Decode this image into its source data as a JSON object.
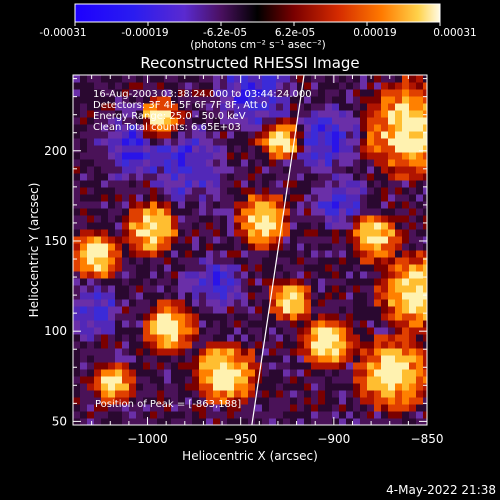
{
  "colorbar": {
    "tick_labels": [
      "-0.00031",
      "-0.00019",
      "-6.2e-05",
      "6.2e-05",
      "0.00019",
      "0.00031"
    ],
    "units_text": "(photons cm⁻² s⁻¹ asec⁻²)",
    "range": [
      -0.00031,
      0.00031
    ],
    "colormap": [
      "#1d00ff",
      "#3c2bd6",
      "#6a2fc0",
      "#5a0a3a",
      "#000000",
      "#7a0000",
      "#d42a00",
      "#ff7a00",
      "#ffd24a",
      "#fffbe6"
    ]
  },
  "header_info": {
    "time_range": "16-Aug-2003 03:38:24.000 to 03:44:24.000",
    "detectors": "Detectors: 3F 4F 5F 6F 7F 8F, Att 0",
    "energy": "Energy Range: 25.0 - 50.0 keV",
    "clean": "Clean     Total counts: 6.65E+03"
  },
  "peak_label": "Position of Peak = [-863,188]",
  "footer_date": "4-May-2022 21:38",
  "chart_data": {
    "type": "heatmap",
    "title": "Reconstructed RHESSI Image",
    "xlabel": "Heliocentric X (arcsec)",
    "ylabel": "Heliocentric Y (arcsec)",
    "xlim": [
      -1040,
      -850
    ],
    "ylim": [
      48,
      242
    ],
    "x_ticks": [
      -1000,
      -950,
      -900,
      -850
    ],
    "y_ticks": [
      50,
      100,
      150,
      200
    ],
    "x_tick_labels": [
      "−1000",
      "−950",
      "−900",
      "−850"
    ],
    "y_tick_labels": [
      "50",
      "100",
      "150",
      "200"
    ],
    "peak_position": [
      -863,
      188
    ],
    "limb_line": [
      [
        -944,
        48
      ],
      [
        -916,
        242
      ]
    ],
    "field_description": "noisy clean image; bright orange/yellow patches along right edge near x=-865..-855 and scattered sources; dark violet/blue background elsewhere"
  }
}
